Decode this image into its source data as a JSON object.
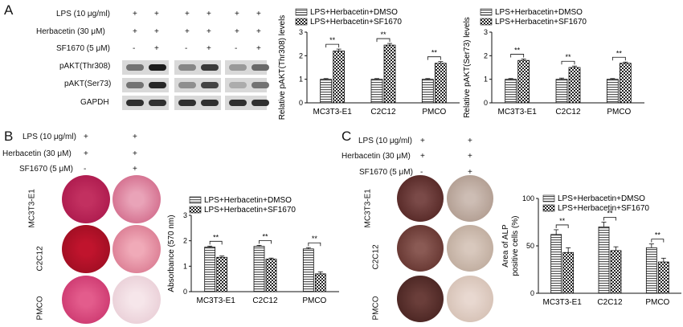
{
  "panel_a": {
    "letter": "A",
    "treatments": [
      {
        "label": "LPS (10 μg/ml)",
        "marks": [
          "+",
          "+",
          "+",
          "+",
          "+",
          "+"
        ]
      },
      {
        "label": "Herbacetin (30 μM)",
        "marks": [
          "+",
          "+",
          "+",
          "+",
          "+",
          "+"
        ]
      },
      {
        "label": "SF1670 (5 μM)",
        "marks": [
          "-",
          "+",
          "-",
          "+",
          "-",
          "+"
        ]
      }
    ],
    "blots": [
      {
        "label": "pAKT(Thr308)",
        "intensity": [
          0.45,
          0.9,
          0.35,
          0.75,
          0.25,
          0.5
        ]
      },
      {
        "label": "pAKT(Ser73)",
        "intensity": [
          0.45,
          0.85,
          0.3,
          0.7,
          0.15,
          0.45
        ]
      },
      {
        "label": "GAPDH",
        "intensity": [
          0.8,
          0.8,
          0.8,
          0.8,
          0.8,
          0.8
        ]
      }
    ]
  },
  "panel_b": {
    "letter": "B",
    "treatments": [
      {
        "label": "LPS (10 μg/ml)",
        "marks": [
          "+",
          "+"
        ]
      },
      {
        "label": "Herbacetin (30 μM)",
        "marks": [
          "+",
          "+"
        ]
      },
      {
        "label": "SF1670 (5 μM)",
        "marks": [
          "-",
          "+"
        ]
      }
    ],
    "row_labels": [
      "MC3T3-E1",
      "C2C12",
      "PMCO"
    ]
  },
  "panel_c": {
    "letter": "C",
    "treatments": [
      {
        "label": "LPS (10 μg/ml)",
        "marks": [
          "+",
          "+"
        ]
      },
      {
        "label": "Herbacetin (30 μM)",
        "marks": [
          "+",
          "+"
        ]
      },
      {
        "label": "SF1670 (5 μM)",
        "marks": [
          "-",
          "+"
        ]
      }
    ],
    "row_labels": [
      "MC3T3-E1",
      "C2C12",
      "PMCO"
    ]
  },
  "colors": {
    "dmso_bar": "#e8e8e8",
    "sf_bar": "checker",
    "axis": "#111111"
  },
  "chart_data": [
    {
      "type": "bar",
      "ylabel": "Relative pAKT(Thr308) levels",
      "categories": [
        "MC3T3-E1",
        "C2C12",
        "PMCO"
      ],
      "series": [
        {
          "name": "LPS+Herbacetin+DMSO",
          "values": [
            1.0,
            1.0,
            1.0
          ],
          "errors": [
            0.03,
            0.03,
            0.03
          ]
        },
        {
          "name": "LPS+Herbacetin+SF1670",
          "values": [
            2.2,
            2.45,
            1.68
          ],
          "errors": [
            0.08,
            0.07,
            0.07
          ]
        }
      ],
      "ylim": [
        0,
        3
      ],
      "yticks": [
        "0",
        "1",
        "2",
        "3"
      ],
      "annotations": [
        "**",
        "**",
        "**"
      ],
      "legend": "top"
    },
    {
      "type": "bar",
      "ylabel": "Relative pAKT(Ser73) levels",
      "categories": [
        "MC3T3-E1",
        "C2C12",
        "PMCO"
      ],
      "series": [
        {
          "name": "LPS+Herbacetin+DMSO",
          "values": [
            1.0,
            1.0,
            1.0
          ],
          "errors": [
            0.03,
            0.05,
            0.03
          ]
        },
        {
          "name": "LPS+Herbacetin+SF1670",
          "values": [
            1.8,
            1.5,
            1.68
          ],
          "errors": [
            0.06,
            0.06,
            0.05
          ]
        }
      ],
      "ylim": [
        0,
        3
      ],
      "yticks": [
        "0",
        "1",
        "2",
        "3"
      ],
      "annotations": [
        "**",
        "**",
        "**"
      ],
      "legend": "top"
    },
    {
      "type": "bar",
      "ylabel": "Absorbance (570 nm)",
      "categories": [
        "MC3T3-E1",
        "C2C12",
        "PMCO"
      ],
      "series": [
        {
          "name": "LPS+Herbacetin+DMSO",
          "values": [
            1.75,
            1.78,
            1.68
          ],
          "errors": [
            0.04,
            0.04,
            0.05
          ]
        },
        {
          "name": "LPS+Herbacetin+SF1670",
          "values": [
            1.35,
            1.28,
            0.7
          ],
          "errors": [
            0.05,
            0.04,
            0.08
          ]
        }
      ],
      "ylim": [
        0,
        3
      ],
      "yticks": [
        "0",
        "1",
        "2",
        "3"
      ],
      "annotations": [
        "**",
        "**",
        "**"
      ],
      "legend": "top"
    },
    {
      "type": "bar",
      "ylabel": "Area of ALP positive cells (%)",
      "categories": [
        "MC3T3-E1",
        "C2C12",
        "PMCO"
      ],
      "series": [
        {
          "name": "LPS+Herbacetin+DMSO",
          "values": [
            62,
            70,
            48
          ],
          "errors": [
            5,
            5,
            4
          ]
        },
        {
          "name": "LPS+Herbacetin+SF1670",
          "values": [
            43,
            45,
            33
          ],
          "errors": [
            5,
            4,
            4
          ]
        }
      ],
      "ylim": [
        0,
        100
      ],
      "yticks": [
        "0",
        "50",
        "100"
      ],
      "annotations": [
        "**",
        "**",
        "**"
      ],
      "legend": "top"
    }
  ]
}
